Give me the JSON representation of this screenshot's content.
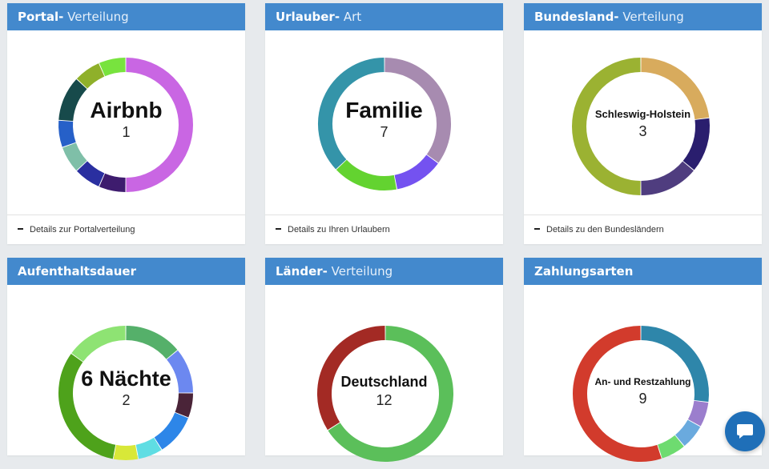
{
  "cards": [
    {
      "title_strong": "Portal-",
      "title_light": " Verteilung",
      "center_label": "Airbnb",
      "center_count": "1",
      "footer_text": "Details zur Portalverteilung",
      "segments": [
        {
          "value": 46,
          "color": "#c966e3"
        },
        {
          "value": 6,
          "color": "#3e1c6e"
        },
        {
          "value": 6,
          "color": "#2a2fa0"
        },
        {
          "value": 6,
          "color": "#7fbfa8"
        },
        {
          "value": 6,
          "color": "#2660c8"
        },
        {
          "value": 10,
          "color": "#174a4b"
        },
        {
          "value": 6,
          "color": "#8fb02a"
        },
        {
          "value": 6,
          "color": "#78e33e"
        }
      ]
    },
    {
      "title_strong": "Urlauber-",
      "title_light": " Art",
      "center_label": "Familie",
      "center_count": "7",
      "footer_text": "Details zu Ihren Urlaubern",
      "segments": [
        {
          "value": 35,
          "color": "#a78bb0"
        },
        {
          "value": 12,
          "color": "#7452f0"
        },
        {
          "value": 16,
          "color": "#63d330"
        },
        {
          "value": 37,
          "color": "#3494a9"
        }
      ]
    },
    {
      "title_strong": "Bundesland-",
      "title_light": " Verteilung",
      "center_label": "Schleswig-Holstein",
      "center_count": "3",
      "footer_text": "Details zu den Bundesländern",
      "segments": [
        {
          "value": 23,
          "color": "#d8ab5d"
        },
        {
          "value": 13,
          "color": "#2a1e6e"
        },
        {
          "value": 14,
          "color": "#4f3d7f"
        },
        {
          "value": 50,
          "color": "#9bb232"
        }
      ]
    },
    {
      "title_strong": "Aufenthaltsdauer",
      "title_light": "",
      "center_label": "6 Nächte",
      "center_count": "2",
      "footer_text": "",
      "segments": [
        {
          "value": 14,
          "color": "#55b06a"
        },
        {
          "value": 11,
          "color": "#6c88f0"
        },
        {
          "value": 6,
          "color": "#4a2438"
        },
        {
          "value": 10,
          "color": "#2d86e8"
        },
        {
          "value": 6,
          "color": "#5fdde3"
        },
        {
          "value": 6,
          "color": "#d8e838"
        },
        {
          "value": 32,
          "color": "#4ea21b"
        },
        {
          "value": 15,
          "color": "#8ee373"
        }
      ]
    },
    {
      "title_strong": "Länder-",
      "title_light": " Verteilung",
      "center_label": "Deutschland",
      "center_count": "12",
      "footer_text": "",
      "segments": [
        {
          "value": 66,
          "color": "#5bbf5a"
        },
        {
          "value": 34,
          "color": "#a32a24"
        }
      ]
    },
    {
      "title_strong": "Zahlungsarten",
      "title_light": "",
      "center_label": "An- und Restzahlung",
      "center_count": "9",
      "footer_text": "",
      "segments": [
        {
          "value": 27,
          "color": "#2e86aa"
        },
        {
          "value": 6,
          "color": "#9b7ecd"
        },
        {
          "value": 6,
          "color": "#6aaade"
        },
        {
          "value": 6,
          "color": "#6edb70"
        },
        {
          "value": 55,
          "color": "#d23b2c"
        }
      ]
    }
  ],
  "chat_button": {
    "icon": "chat-bubble-icon"
  }
}
